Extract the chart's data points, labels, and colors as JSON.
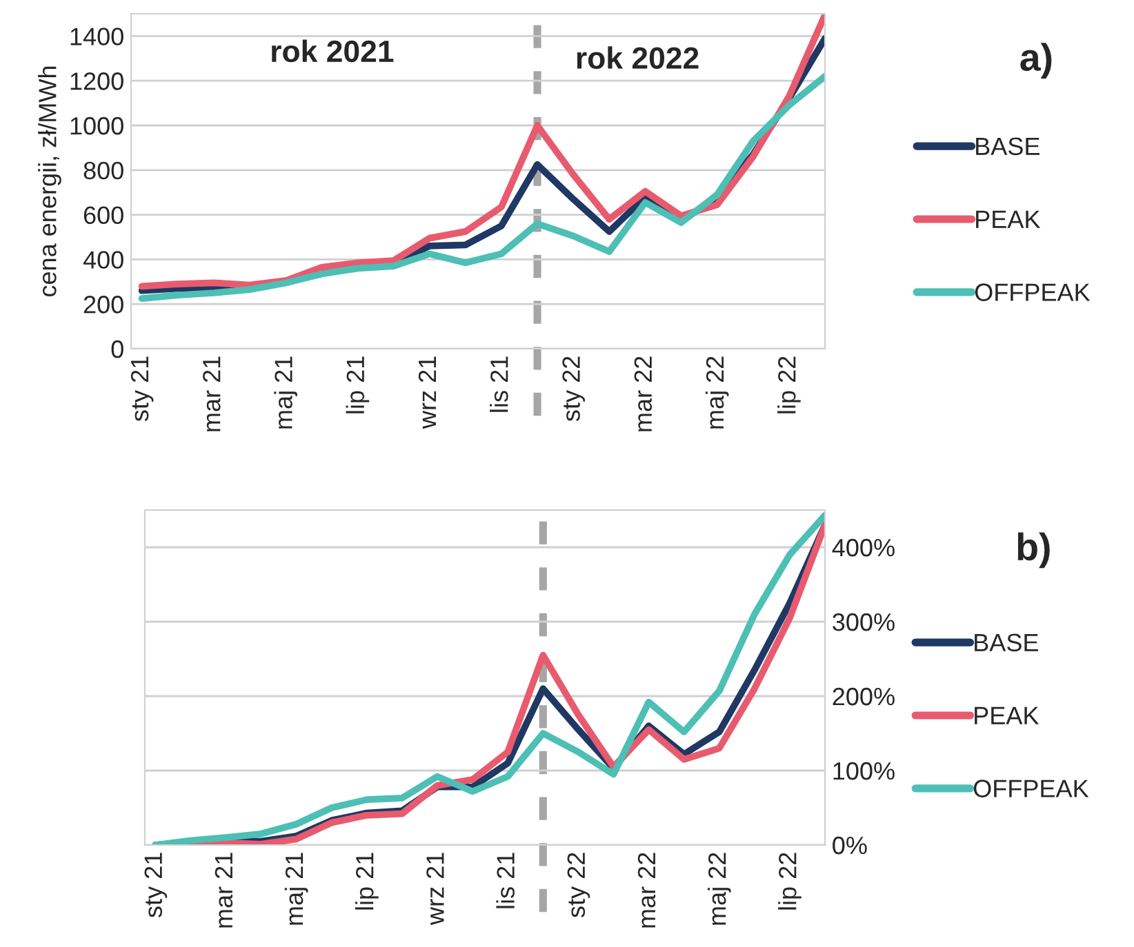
{
  "chart_data": [
    {
      "type": "line",
      "ylabel": "cena energii, zł/MWh",
      "categories": [
        "sty 21",
        null,
        "mar 21",
        null,
        "maj 21",
        null,
        "lip 21",
        null,
        "wrz 21",
        null,
        "lis 21",
        null,
        "sty 22",
        null,
        "mar 22",
        null,
        "maj 22",
        null,
        "lip 22",
        null
      ],
      "series": [
        {
          "name": "BASE",
          "color": "#1f3864",
          "values": [
            260,
            270,
            275,
            280,
            300,
            340,
            370,
            380,
            460,
            465,
            550,
            825,
            670,
            525,
            680,
            570,
            680,
            870,
            1120,
            1390
          ]
        },
        {
          "name": "PEAK",
          "color": "#e85b6e",
          "values": [
            280,
            290,
            295,
            285,
            305,
            365,
            385,
            395,
            495,
            525,
            635,
            1000,
            780,
            580,
            705,
            595,
            645,
            860,
            1130,
            1495
          ]
        },
        {
          "name": "OFFPEAK",
          "color": "#4dbfb5",
          "values": [
            225,
            240,
            250,
            265,
            295,
            335,
            360,
            370,
            425,
            385,
            425,
            560,
            505,
            435,
            655,
            565,
            690,
            930,
            1090,
            1220
          ]
        }
      ],
      "ylim": [
        0,
        1500
      ],
      "yticks": [
        0,
        200,
        400,
        600,
        800,
        1000,
        1200,
        1400
      ],
      "grid": "y",
      "legend": "right",
      "marker": "none",
      "line_style": "solid",
      "annotations": [
        "rok 2021",
        "rok 2022",
        "a)"
      ]
    },
    {
      "type": "line",
      "categories": [
        "sty 21",
        null,
        "mar 21",
        null,
        "maj 21",
        null,
        "lip 21",
        null,
        "wrz 21",
        null,
        "lis 21",
        null,
        "sty 22",
        null,
        "mar 22",
        null,
        "maj 22",
        null,
        "lip 22",
        null
      ],
      "series": [
        {
          "name": "BASE",
          "color": "#1f3864",
          "values": [
            0,
            4,
            6,
            5,
            12,
            33,
            43,
            46,
            78,
            78,
            110,
            210,
            155,
            103,
            160,
            122,
            152,
            235,
            325,
            430
          ]
        },
        {
          "name": "PEAK",
          "color": "#e85b6e",
          "values": [
            0,
            2,
            3,
            1,
            8,
            30,
            40,
            42,
            80,
            88,
            125,
            255,
            175,
            105,
            155,
            115,
            130,
            210,
            305,
            430
          ]
        },
        {
          "name": "OFFPEAK",
          "color": "#4dbfb5",
          "values": [
            0,
            6,
            10,
            15,
            28,
            50,
            61,
            63,
            92,
            72,
            92,
            150,
            125,
            95,
            192,
            152,
            207,
            310,
            390,
            443
          ]
        }
      ],
      "ylim": [
        0,
        450
      ],
      "yticks": [
        {
          "value": 0,
          "label": "0%"
        },
        {
          "value": 100,
          "label": "100%"
        },
        {
          "value": 200,
          "label": "200%"
        },
        {
          "value": 300,
          "label": "300%"
        },
        {
          "value": 400,
          "label": "400%"
        }
      ],
      "grid": "y",
      "legend": "right",
      "marker": "none",
      "line_style": "solid",
      "annotations": [
        "b)"
      ]
    }
  ]
}
